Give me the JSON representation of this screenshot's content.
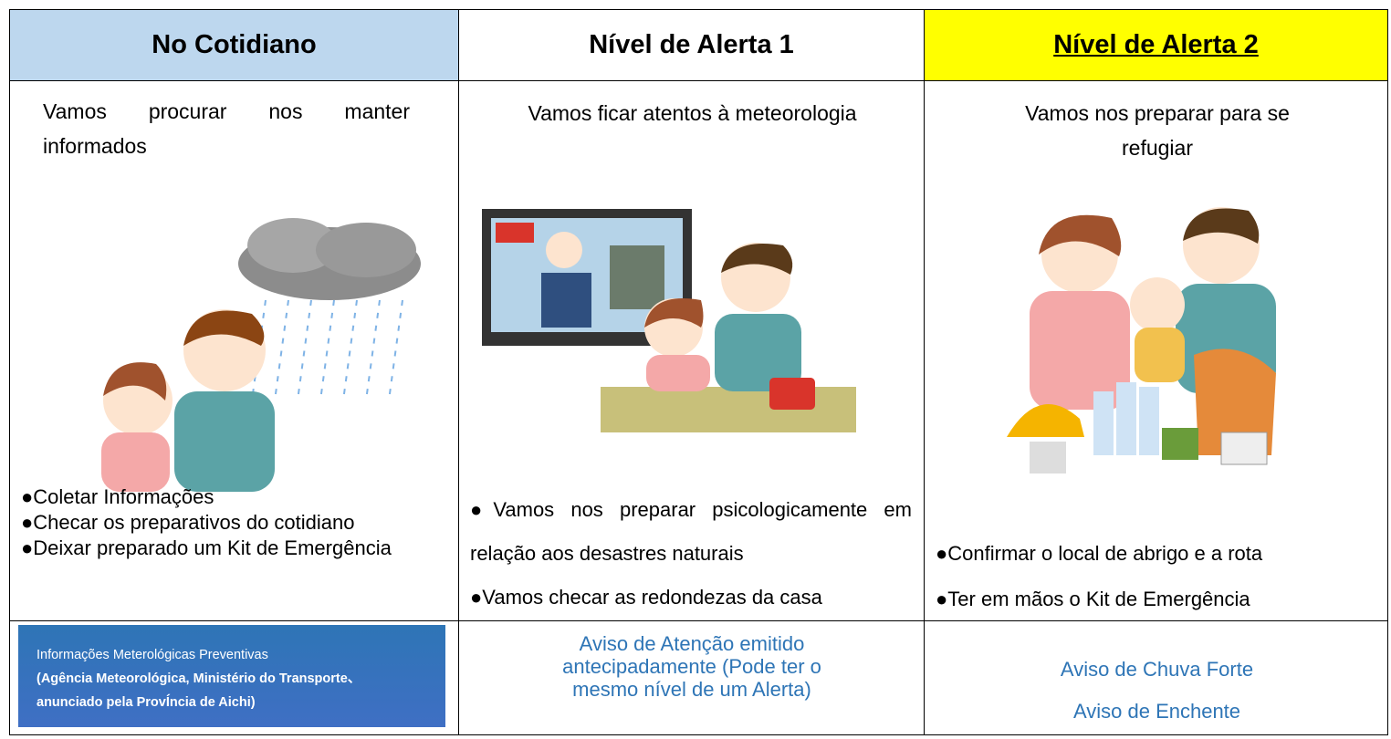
{
  "columns": [
    {
      "header": "No Cotidiano",
      "subtitle": "Vamos procurar nos manter informados",
      "bullets": [
        "●Coletar Informações",
        "●Checar os preparativos do cotidiano",
        "●Deixar preparado um Kit de Emergência"
      ],
      "footer": [
        "Informações Meterológicas Preventivas",
        "(Agência Meteorológica, Ministério do Transporte、",
        "anunciado pela ProvÍncia de Aichi)"
      ]
    },
    {
      "header": "Nível de Alerta 1",
      "subtitle": "Vamos ficar atentos à meteorologia",
      "bullets": [
        "●Vamos nos preparar psicologicamente em relação aos desastres naturais",
        "●Vamos checar as redondezas da casa"
      ],
      "footer": [
        "Aviso de Atenção emitido antecipadamente (Pode ter o mesmo nível de um Alerta)"
      ]
    },
    {
      "header": "Nível de Alerta 2",
      "subtitle": "Vamos nos preparar para se refugiar",
      "bullets": [
        "●Confirmar o local de abrigo e a rota",
        "●Ter em mãos o Kit de Emergência"
      ],
      "footer": [
        "Aviso de Chuva Forte",
        "Aviso de Enchente"
      ]
    }
  ]
}
